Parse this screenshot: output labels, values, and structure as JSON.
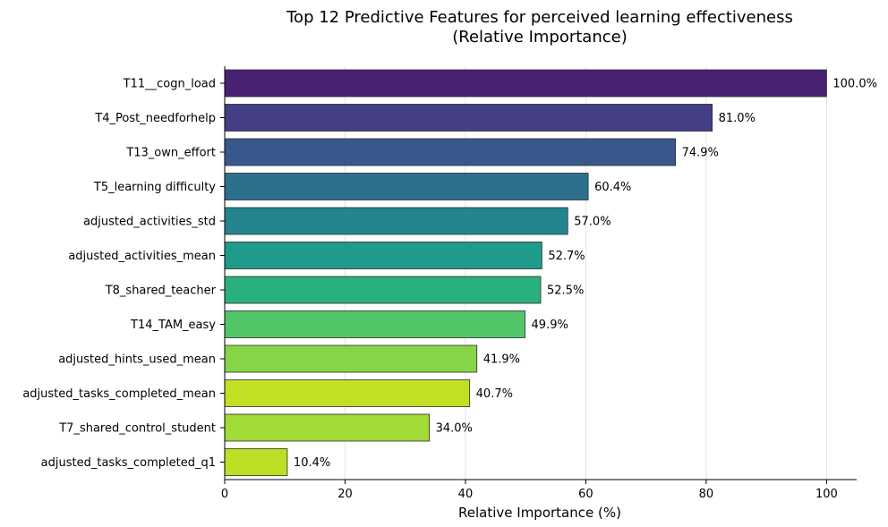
{
  "chart_data": {
    "type": "bar",
    "orientation": "horizontal",
    "title": "Top 12 Predictive Features for perceived learning effectiveness",
    "subtitle": "(Relative Importance)",
    "xlabel": "Relative Importance (%)",
    "ylabel": "",
    "xlim": [
      0,
      105
    ],
    "xticks": [
      0,
      20,
      40,
      60,
      80,
      100
    ],
    "grid": "vertical",
    "categories": [
      "T11__cogn_load",
      "T4_Post_needforhelp",
      "T13_own_effort",
      "T5_learning difficulty",
      "adjusted_activities_std",
      "adjusted_activities_mean",
      "T8_shared_teacher",
      "T14_TAM_easy",
      "adjusted_hints_used_mean",
      "adjusted_tasks_completed_mean",
      "T7_shared_control_student",
      "adjusted_tasks_completed_q1"
    ],
    "values": [
      100.0,
      81.0,
      74.9,
      60.4,
      57.0,
      52.7,
      52.5,
      49.9,
      41.9,
      40.7,
      34.0,
      10.4
    ],
    "value_labels": [
      "100.0%",
      "81.0%",
      "74.9%",
      "60.4%",
      "57.0%",
      "52.7%",
      "52.5%",
      "49.9%",
      "41.9%",
      "40.7%",
      "34.0%",
      "10.4%"
    ],
    "colors": [
      "#482173",
      "#433e85",
      "#38588c",
      "#2d708e",
      "#25858e",
      "#1e9b8a",
      "#2ab07f",
      "#52c569",
      "#86d549",
      "#c2df23",
      "#a2da37",
      "#bddf26"
    ]
  }
}
